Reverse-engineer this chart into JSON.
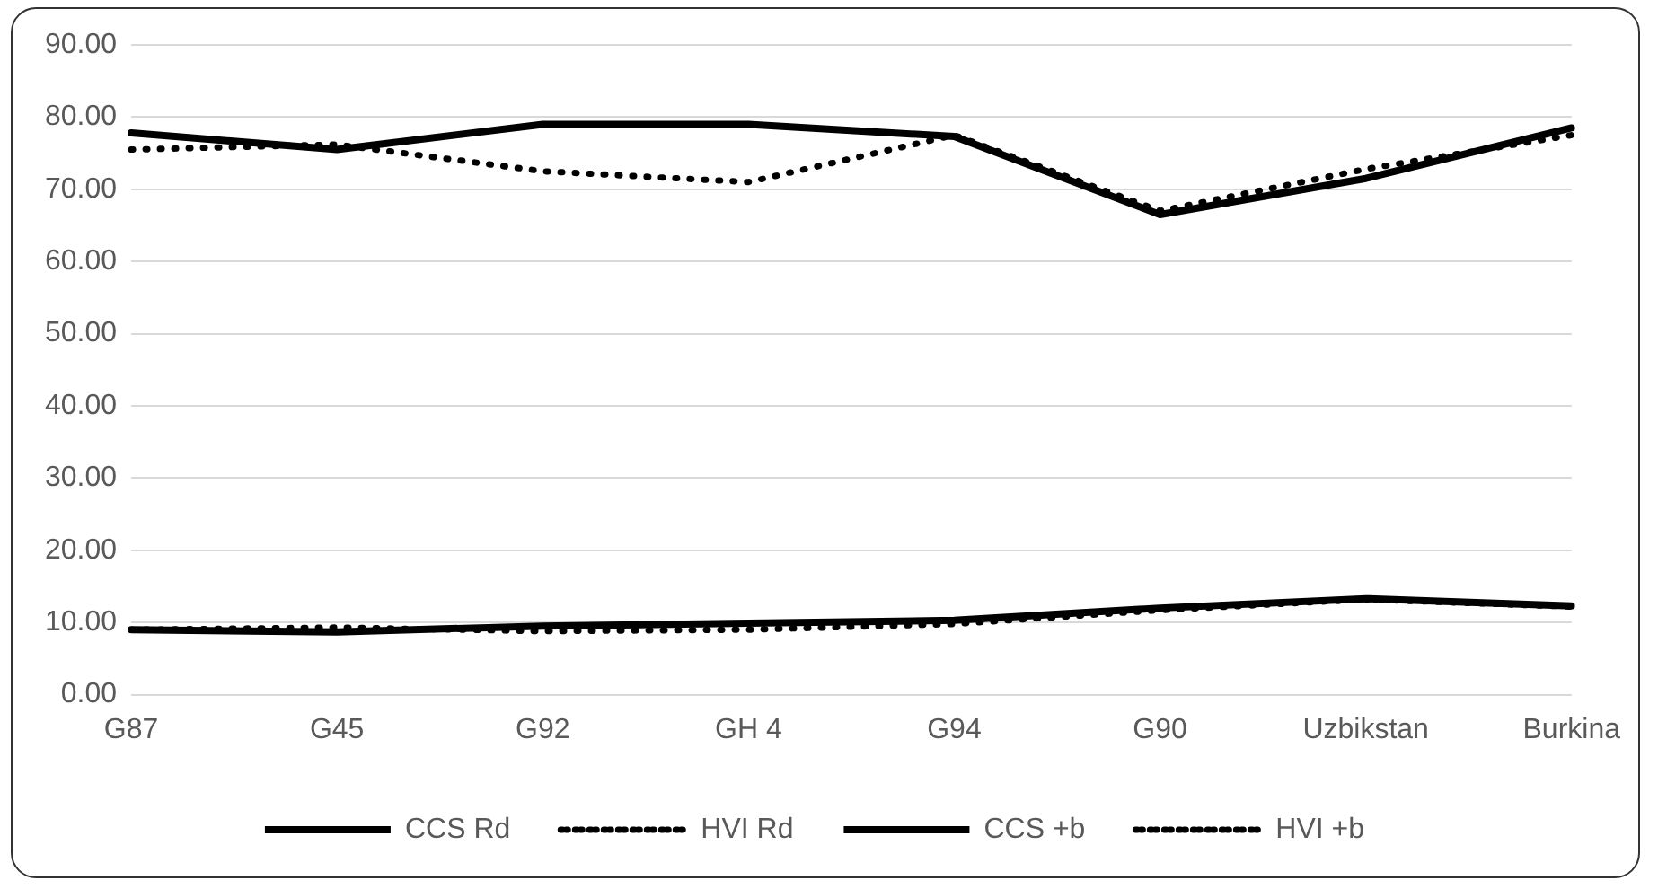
{
  "chart_data": {
    "type": "line",
    "categories": [
      "G87",
      "G45",
      "G92",
      "GH 4",
      "G94",
      "G90",
      "Uzbikstan",
      "Burkina"
    ],
    "series": [
      {
        "name": "CCS Rd",
        "color": "#000000",
        "line_style": "solid",
        "values": [
          77.8,
          75.5,
          79.0,
          79.0,
          77.3,
          66.5,
          71.5,
          78.5
        ]
      },
      {
        "name": "HVI Rd",
        "color": "#000000",
        "line_style": "dotted",
        "values": [
          75.5,
          76.2,
          72.5,
          71.0,
          77.5,
          67.0,
          72.8,
          77.5
        ]
      },
      {
        "name": "CCS +b",
        "color": "#000000",
        "line_style": "solid",
        "values": [
          9.0,
          8.7,
          9.5,
          9.9,
          10.3,
          12.0,
          13.3,
          12.3
        ]
      },
      {
        "name": "HVI +b",
        "color": "#000000",
        "line_style": "dotted",
        "values": [
          9.0,
          9.3,
          8.8,
          9.0,
          9.8,
          11.7,
          13.2,
          12.2
        ]
      }
    ],
    "ylim": [
      0,
      90
    ],
    "yticks": [
      {
        "value": 0,
        "label": "0.00"
      },
      {
        "value": 10,
        "label": "10.00"
      },
      {
        "value": 20,
        "label": "20.00"
      },
      {
        "value": 30,
        "label": "30.00"
      },
      {
        "value": 40,
        "label": "40.00"
      },
      {
        "value": 50,
        "label": "50.00"
      },
      {
        "value": 60,
        "label": "60.00"
      },
      {
        "value": 70,
        "label": "70.00"
      },
      {
        "value": 80,
        "label": "80.00"
      },
      {
        "value": 90,
        "label": "90.00"
      }
    ],
    "grid": "y",
    "legend": "bottom",
    "marker": "none"
  }
}
